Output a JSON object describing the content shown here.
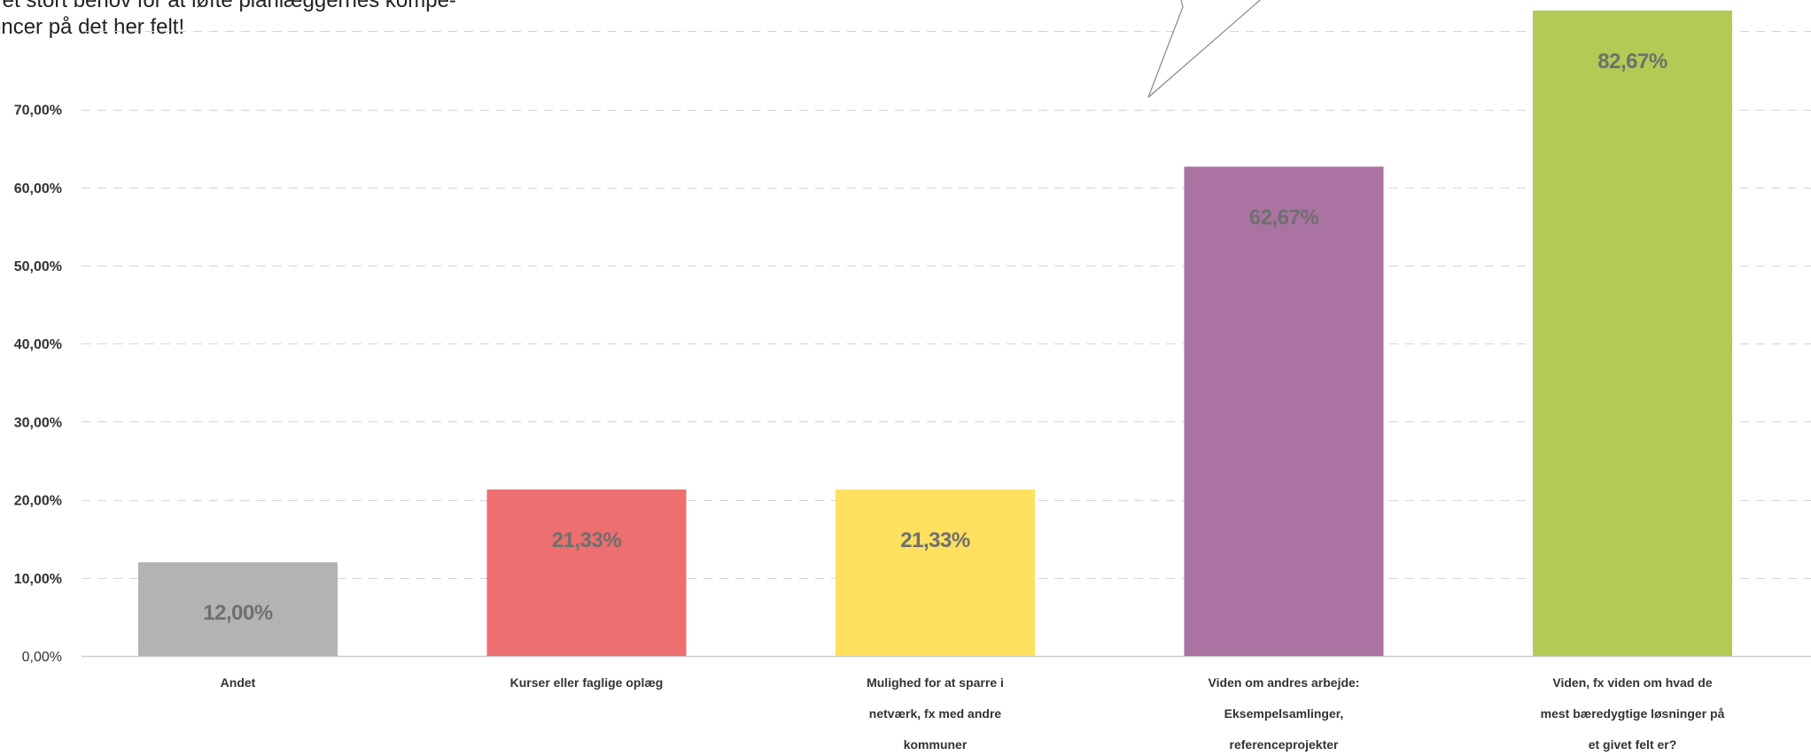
{
  "annotation": {
    "lines": [
      "r et stort behov for at løfte planlæggernes kompe-",
      "encer på det her felt!"
    ]
  },
  "chart_data": {
    "type": "bar",
    "title": "",
    "xlabel": "",
    "ylabel": "",
    "ylim": [
      0,
      85
    ],
    "grid": true,
    "y_ticks": [
      "0,00%",
      "10,00%",
      "20,00%",
      "30,00%",
      "40,00%",
      "50,00%",
      "60,00%",
      "70,00%"
    ],
    "y_tick_values": [
      0,
      10,
      20,
      30,
      40,
      50,
      60,
      70
    ],
    "categories": [
      [
        "Andet"
      ],
      [
        "Kurser eller faglige oplæg"
      ],
      [
        "Mulighed for at sparre i",
        "netværk, fx med andre",
        "kommuner"
      ],
      [
        "Viden om andres arbejde:",
        "Eksempelsamlinger,",
        "referenceprojekter"
      ],
      [
        "Viden, fx viden om hvad de",
        "mest bæredygtige løsninger på",
        "et givet felt er?"
      ]
    ],
    "values": [
      12.0,
      21.33,
      21.33,
      62.67,
      82.67
    ],
    "data_labels": [
      "12,00%",
      "21,33%",
      "21,33%",
      "62,67%",
      "82,67%"
    ],
    "colors": [
      "#b3b3b3",
      "#ed6f6f",
      "#fde05e",
      "#ab73a1",
      "#b2cb55"
    ]
  }
}
